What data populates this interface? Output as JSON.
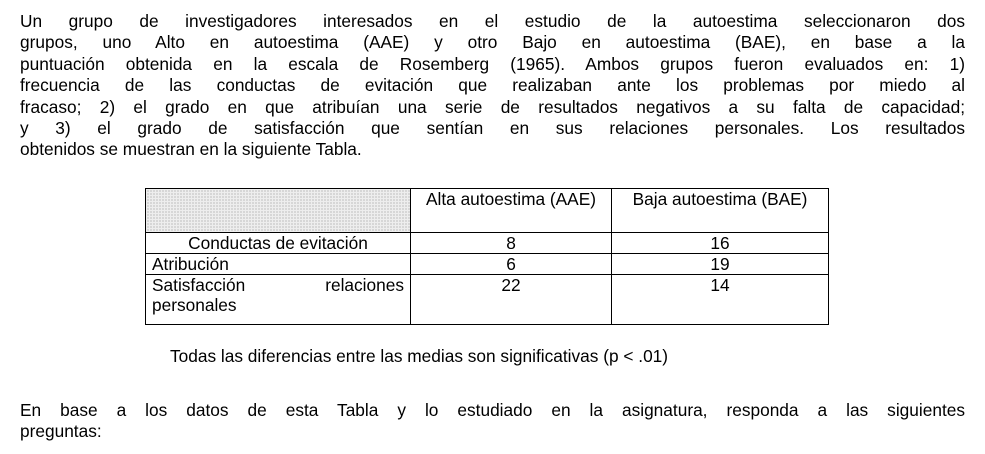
{
  "intro_lines": [
    "Un grupo de investigadores interesados en el estudio de la autoestima seleccionaron dos",
    "grupos, uno Alto en autoestima (AAE) y otro Bajo en autoestima (BAE), en base a la",
    "puntuación obtenida en la escala de Rosemberg (1965). Ambos grupos fueron evaluados en: 1)",
    "frecuencia de las conductas de evitación que realizaban ante los problemas por miedo al",
    "fracaso; 2) el grado en que atribuían una serie de resultados negativos a su falta de capacidad;",
    "y 3) el grado de satisfacción que sentían en sus relaciones personales. Los resultados",
    "obtenidos se muestran en la siguiente Tabla."
  ],
  "table": {
    "headers": [
      "",
      "Alta autoestima (AAE)",
      "Baja autoestima (BAE)"
    ],
    "rows": [
      {
        "label": "Conductas de evitación",
        "aae": "8",
        "bae": "16"
      },
      {
        "label": "Atribución",
        "aae": "6",
        "bae": "19"
      },
      {
        "label": "Satisfacción relaciones personales",
        "aae": "22",
        "bae": "14"
      }
    ],
    "caption": "Todas las diferencias entre las medias son significativas (p < .01)"
  },
  "question_lines": [
    "En base a los datos de esta Tabla y lo estudiado en la asignatura, responda a las siguientes",
    "preguntas:"
  ]
}
